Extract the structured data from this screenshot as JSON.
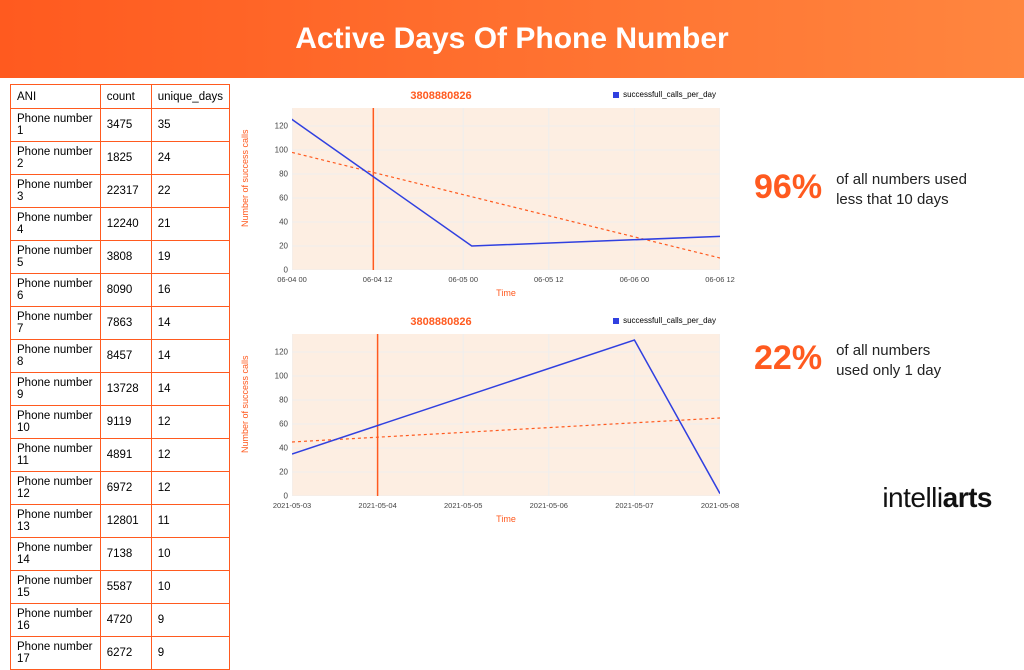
{
  "header": {
    "title": "Active Days Of Phone Number",
    "bg_gradient_from": "#ff5a1f",
    "bg_gradient_to": "#ff863f",
    "text_color": "#ffffff"
  },
  "accent_color": "#ff5a1f",
  "table": {
    "border_color": "#ff5a1f",
    "text_color": "#111111",
    "columns": [
      "ANI",
      "count",
      "unique_days"
    ],
    "col_widths": [
      "108px",
      "54px",
      "auto"
    ],
    "rows": [
      [
        "Phone number 1",
        "3475",
        "35"
      ],
      [
        "Phone number 2",
        "1825",
        "24"
      ],
      [
        "Phone number 3",
        "22317",
        "22"
      ],
      [
        "Phone number 4",
        "12240",
        "21"
      ],
      [
        "Phone number 5",
        "3808",
        "19"
      ],
      [
        "Phone number 6",
        "8090",
        "16"
      ],
      [
        "Phone number 7",
        "7863",
        "14"
      ],
      [
        "Phone number 8",
        "8457",
        "14"
      ],
      [
        "Phone number 9",
        "13728",
        "14"
      ],
      [
        "Phone number 10",
        "9119",
        "12"
      ],
      [
        "Phone number 11",
        "4891",
        "12"
      ],
      [
        "Phone number 12",
        "6972",
        "12"
      ],
      [
        "Phone number 13",
        "12801",
        "11"
      ],
      [
        "Phone number 14",
        "7138",
        "10"
      ],
      [
        "Phone number 15",
        "5587",
        "10"
      ],
      [
        "Phone number 16",
        "4720",
        "9"
      ],
      [
        "Phone number 17",
        "6272",
        "9"
      ]
    ]
  },
  "chart1": {
    "title": "3808880826",
    "title_color": "#ff5a1f",
    "legend_label": "successfull_calls_per_day",
    "legend_color": "#3040e0",
    "plot_bg": "#fdeee2",
    "ylabel": "Number of success calls",
    "ylabel_color": "#ff5a1f",
    "xlabel": "Time",
    "xlabel_color": "#ff5a1f",
    "ylim": [
      0,
      135
    ],
    "yticks": [
      0,
      20,
      40,
      60,
      80,
      100,
      120
    ],
    "xticks": [
      "06-04 00",
      "06-04 12",
      "06-05 00",
      "06-05 12",
      "06-06 00",
      "06-06 12"
    ],
    "grid_color": "#eeeeee",
    "series": {
      "color": "#3040e0",
      "width": 1.5,
      "points": [
        [
          -0.05,
          138
        ],
        [
          0.42,
          20
        ],
        [
          1.0,
          28
        ]
      ]
    },
    "trend": {
      "color": "#ff5a1f",
      "width": 1.2,
      "dash": "3,3",
      "points": [
        [
          0,
          98
        ],
        [
          1,
          10
        ]
      ]
    },
    "vline": {
      "x": 0.19,
      "color": "#ff5a1f",
      "width": 1.5
    }
  },
  "chart2": {
    "title": "3808880826",
    "title_color": "#ff5a1f",
    "legend_label": "successfull_calls_per_day",
    "legend_color": "#3040e0",
    "plot_bg": "#fdeee2",
    "ylabel": "Number of success calls",
    "ylabel_color": "#ff5a1f",
    "xlabel": "Time",
    "xlabel_color": "#ff5a1f",
    "ylim": [
      0,
      135
    ],
    "yticks": [
      0,
      20,
      40,
      60,
      80,
      100,
      120
    ],
    "xticks": [
      "2021-05-03",
      "2021-05-04",
      "2021-05-05",
      "2021-05-06",
      "2021-05-07",
      "2021-05-08"
    ],
    "grid_color": "#eeeeee",
    "series": {
      "color": "#3040e0",
      "width": 1.5,
      "points": [
        [
          0,
          35
        ],
        [
          0.8,
          130
        ],
        [
          1.0,
          2
        ]
      ]
    },
    "trend": {
      "color": "#ff5a1f",
      "width": 1.2,
      "dash": "3,3",
      "points": [
        [
          0,
          45
        ],
        [
          1,
          65
        ]
      ]
    },
    "vline": {
      "x": 0.2,
      "color": "#ff5a1f",
      "width": 1.5
    }
  },
  "stats": [
    {
      "pct": "96%",
      "text1": "of all numbers used",
      "text2": "less that 10 days",
      "pct_color": "#ff5a1f"
    },
    {
      "pct": "22%",
      "text1": "of all numbers",
      "text2": "used only 1 day",
      "pct_color": "#ff5a1f"
    }
  ],
  "logo": {
    "part1": "intelli",
    "part2": "arts"
  }
}
